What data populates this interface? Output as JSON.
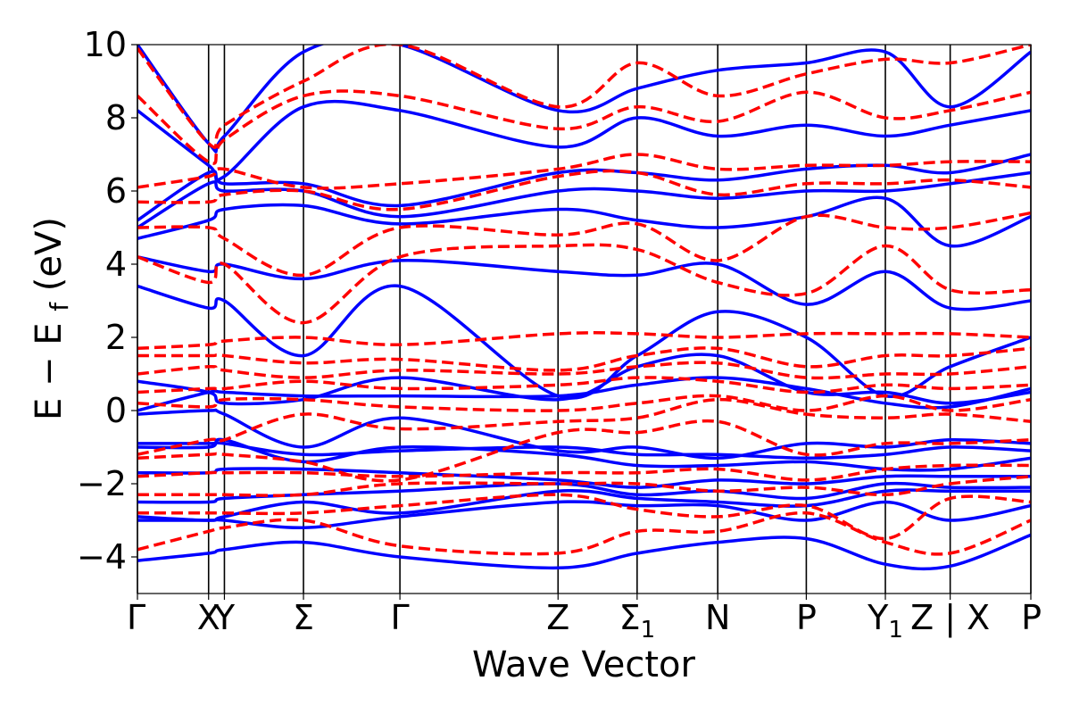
{
  "chart_data": {
    "type": "line",
    "title": "",
    "xlabel": "Wave Vector",
    "ylabel_main": "E − E",
    "ylabel_sub": "f",
    "ylabel_unit": " (eV)",
    "ylim": [
      -5,
      10
    ],
    "xlim": [
      0,
      5.65
    ],
    "yticks": [
      {
        "value": -4,
        "label": "−4"
      },
      {
        "value": -2,
        "label": "−2"
      },
      {
        "value": 0,
        "label": "0"
      },
      {
        "value": 2,
        "label": "2"
      },
      {
        "value": 4,
        "label": "4"
      },
      {
        "value": 6,
        "label": "6"
      },
      {
        "value": 8,
        "label": "8"
      },
      {
        "value": 10,
        "label": "10"
      }
    ],
    "kpoints": [
      {
        "x": 0.0,
        "label": "Γ",
        "sub": ""
      },
      {
        "x": 0.45,
        "label": "X",
        "sub": ""
      },
      {
        "x": 0.55,
        "label": "Y",
        "sub": ""
      },
      {
        "x": 1.05,
        "label": "Σ",
        "sub": ""
      },
      {
        "x": 1.66,
        "label": "Γ",
        "sub": ""
      },
      {
        "x": 2.66,
        "label": "Z",
        "sub": ""
      },
      {
        "x": 3.16,
        "label": "Σ",
        "sub": "1"
      },
      {
        "x": 3.67,
        "label": "N",
        "sub": ""
      },
      {
        "x": 4.23,
        "label": "P",
        "sub": ""
      },
      {
        "x": 4.73,
        "label": "Y",
        "sub": "1"
      },
      {
        "x": 5.14,
        "label": "Z | X",
        "sub": ""
      },
      {
        "x": 5.65,
        "label": "P",
        "sub": ""
      }
    ],
    "series": [
      {
        "style": "solid",
        "color": "#0000ff",
        "x": [
          0,
          0.45,
          0.55,
          1.05,
          1.66,
          2.66,
          3.16,
          3.67,
          4.23,
          4.73,
          5.14,
          5.65
        ],
        "bands": [
          [
            -4.1,
            -3.9,
            -3.8,
            -3.6,
            -4.0,
            -4.3,
            -3.9,
            -3.6,
            -3.5,
            -4.2,
            -4.25,
            -3.4
          ],
          [
            -3.0,
            -3.0,
            -3.0,
            -3.2,
            -2.9,
            -2.5,
            -2.6,
            -2.6,
            -3.0,
            -2.5,
            -3.0,
            -2.6
          ],
          [
            -2.9,
            -3.0,
            -2.9,
            -2.5,
            -2.8,
            -2.2,
            -2.4,
            -2.5,
            -2.6,
            -2.2,
            -2.2,
            -2.2
          ],
          [
            -2.5,
            -2.5,
            -2.4,
            -2.3,
            -2.2,
            -2.0,
            -2.3,
            -2.2,
            -2.4,
            -2.0,
            -2.1,
            -2.1
          ],
          [
            -1.7,
            -1.7,
            -1.6,
            -1.6,
            -1.7,
            -1.9,
            -2.1,
            -1.9,
            -2.0,
            -1.8,
            -1.8,
            -1.8
          ],
          [
            -1.0,
            -1.0,
            -0.8,
            -1.4,
            -1.0,
            -1.2,
            -1.5,
            -1.5,
            -1.4,
            -1.6,
            -1.6,
            -1.3
          ],
          [
            -0.9,
            -0.9,
            -0.9,
            -1.2,
            -1.1,
            -1.0,
            -1.2,
            -1.2,
            -1.3,
            -1.2,
            -1.0,
            -1.1
          ],
          [
            -0.1,
            0.0,
            -0.1,
            -1.0,
            -0.2,
            -1.1,
            -1.0,
            -1.3,
            -0.9,
            -1.0,
            -0.8,
            -0.9
          ],
          [
            0.0,
            0.5,
            0.5,
            0.4,
            0.4,
            0.4,
            0.7,
            0.9,
            0.6,
            0.2,
            0.1,
            0.6
          ],
          [
            0.8,
            0.5,
            0.2,
            0.3,
            0.9,
            0.3,
            1.2,
            1.5,
            0.5,
            0.5,
            0.2,
            0.5
          ],
          [
            3.4,
            2.8,
            3.0,
            1.5,
            3.4,
            0.4,
            1.5,
            2.7,
            2.0,
            0.4,
            1.2,
            2.0
          ],
          [
            4.2,
            3.8,
            4.0,
            3.6,
            4.1,
            3.8,
            3.7,
            4.0,
            2.9,
            3.8,
            2.8,
            3.0
          ],
          [
            4.7,
            5.2,
            5.5,
            5.6,
            5.1,
            5.5,
            5.2,
            5.0,
            5.3,
            5.8,
            4.5,
            5.3
          ],
          [
            5.0,
            6.2,
            6.0,
            6.0,
            5.3,
            6.0,
            6.0,
            5.8,
            6.0,
            6.0,
            6.2,
            6.5
          ],
          [
            5.2,
            6.5,
            6.2,
            6.2,
            5.6,
            6.5,
            6.5,
            6.3,
            6.6,
            6.7,
            6.5,
            7.0
          ],
          [
            8.2,
            6.7,
            6.4,
            8.3,
            8.2,
            7.2,
            8.0,
            7.5,
            7.8,
            7.5,
            7.8,
            8.2
          ],
          [
            10.0,
            7.3,
            7.5,
            9.8,
            10.0,
            8.2,
            8.8,
            9.3,
            9.5,
            9.8,
            8.3,
            9.8
          ]
        ]
      },
      {
        "style": "dashed",
        "color": "#ff0000",
        "x": [
          0,
          0.45,
          0.55,
          1.05,
          1.66,
          2.66,
          3.16,
          3.67,
          4.23,
          4.73,
          5.14,
          5.65
        ],
        "bands": [
          [
            -3.8,
            -3.3,
            -3.2,
            -3.0,
            -3.7,
            -3.9,
            -3.3,
            -3.3,
            -2.8,
            -3.6,
            -3.9,
            -3.0
          ],
          [
            -2.8,
            -2.8,
            -2.8,
            -2.8,
            -2.6,
            -2.3,
            -2.7,
            -2.9,
            -2.6,
            -3.5,
            -2.4,
            -2.5
          ],
          [
            -2.3,
            -2.3,
            -2.3,
            -2.3,
            -2.0,
            -2.0,
            -2.0,
            -2.2,
            -2.1,
            -2.3,
            -2.0,
            -1.8
          ],
          [
            -1.8,
            -1.7,
            -1.7,
            -1.7,
            -1.8,
            -1.7,
            -1.7,
            -1.6,
            -1.9,
            -1.6,
            -1.5,
            -1.5
          ],
          [
            -1.3,
            -1.2,
            -1.2,
            -1.4,
            -1.9,
            -0.6,
            -0.6,
            -0.3,
            -1.2,
            -0.9,
            -0.9,
            -0.8
          ],
          [
            -1.2,
            -0.8,
            -0.8,
            -0.1,
            -0.5,
            -0.3,
            -0.2,
            0.3,
            -0.1,
            -0.2,
            -0.1,
            -0.3
          ],
          [
            0.2,
            0.1,
            0.3,
            0.3,
            0.1,
            0.0,
            0.2,
            0.4,
            0.0,
            0.4,
            0.0,
            0.3
          ],
          [
            0.5,
            0.6,
            0.6,
            0.8,
            0.6,
            0.7,
            0.9,
            0.8,
            0.5,
            0.7,
            0.6,
            0.7
          ],
          [
            1.0,
            1.2,
            1.1,
            0.9,
            1.1,
            1.0,
            1.2,
            1.3,
            0.9,
            1.0,
            1.0,
            1.2
          ],
          [
            1.5,
            1.5,
            1.5,
            1.3,
            1.4,
            1.1,
            1.5,
            1.7,
            1.2,
            1.5,
            1.5,
            1.7
          ],
          [
            1.7,
            1.8,
            1.9,
            2.0,
            1.8,
            2.1,
            2.1,
            2.0,
            2.1,
            2.1,
            2.1,
            2.0
          ],
          [
            4.2,
            3.5,
            4.0,
            2.4,
            4.2,
            4.5,
            4.4,
            3.5,
            3.2,
            4.5,
            3.3,
            3.3
          ],
          [
            5.0,
            5.0,
            4.7,
            3.7,
            5.0,
            4.8,
            5.1,
            4.1,
            5.3,
            5.0,
            5.0,
            5.4
          ],
          [
            5.7,
            5.7,
            5.9,
            6.0,
            5.5,
            6.4,
            6.5,
            5.9,
            6.2,
            6.2,
            6.3,
            6.1
          ],
          [
            6.1,
            6.4,
            6.6,
            6.1,
            6.2,
            6.6,
            7.0,
            6.6,
            6.7,
            6.7,
            6.8,
            6.8
          ],
          [
            8.6,
            6.8,
            7.4,
            8.6,
            8.6,
            7.7,
            8.3,
            7.9,
            8.7,
            8.0,
            8.2,
            8.7
          ],
          [
            9.9,
            7.3,
            7.8,
            9.0,
            10.0,
            8.3,
            9.5,
            8.6,
            9.2,
            9.6,
            9.5,
            10.0
          ]
        ]
      }
    ]
  }
}
